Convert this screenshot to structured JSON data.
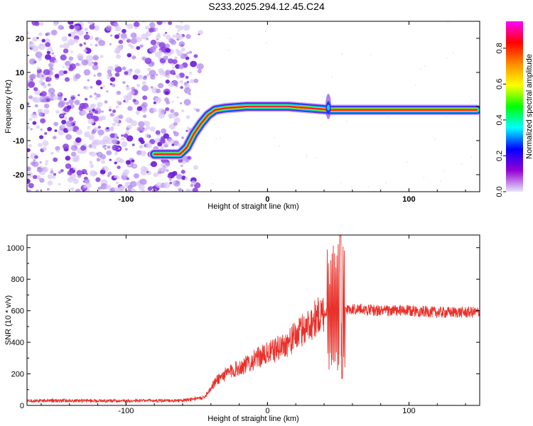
{
  "title": "S233.2025.294.12.45.C24",
  "chart_data": [
    {
      "type": "heatmap",
      "name": "spectrogram",
      "xlabel": "Height of straight line (km)",
      "ylabel": "Frequency (Hz)",
      "xlim": [
        -170,
        150
      ],
      "ylim": [
        -25,
        25
      ],
      "xticks": [
        -100,
        0,
        100
      ],
      "xtick_labels": [
        "-100",
        "0",
        "100"
      ],
      "yticks": [
        20,
        10,
        0,
        -10,
        -20
      ],
      "ytick_labels": [
        "20",
        "10",
        "0",
        "-10",
        "-20"
      ],
      "colorbar": {
        "label": "Normalized spectral amplitude",
        "range": [
          0.0,
          0.95
        ],
        "ticks": [
          0.0,
          0.2,
          0.4,
          0.6,
          0.8
        ],
        "tick_labels": [
          "0.0",
          "0.2",
          "0.4",
          "0.6",
          "0.8"
        ],
        "colors": [
          "#e6e6fa",
          "#9400d3",
          "#0000ff",
          "#00ffff",
          "#00ff00",
          "#ffff00",
          "#ff8c00",
          "#ff0000",
          "#ff00ff"
        ]
      },
      "ridge": {
        "x": [
          -80,
          -62,
          -57,
          -52,
          -47,
          -42,
          -37,
          -30,
          -15,
          0,
          15,
          30,
          45,
          60,
          80,
          100,
          120,
          148
        ],
        "y": [
          -14,
          -14,
          -12,
          -8,
          -5,
          -2.5,
          -1,
          -0.5,
          0,
          0,
          0,
          -0.5,
          -1,
          -1,
          -1,
          -1,
          -1,
          -1
        ]
      },
      "noise_region_x": [
        -170,
        -55
      ]
    },
    {
      "type": "line",
      "name": "snr",
      "xlabel": "Height of straight line (km)",
      "ylabel": "SNR (10 * v/v)",
      "xlim": [
        -170,
        150
      ],
      "ylim": [
        0,
        1080
      ],
      "xticks": [
        -100,
        0,
        100
      ],
      "xtick_labels": [
        "-100",
        "0",
        "100"
      ],
      "yticks": [
        0,
        200,
        400,
        600,
        800,
        1000
      ],
      "ytick_labels": [
        "0",
        "200",
        "400",
        "600",
        "800",
        "1000"
      ],
      "color": "#e8312a",
      "envelope": {
        "x": [
          -170,
          -60,
          -45,
          -35,
          -25,
          -15,
          -5,
          5,
          15,
          25,
          35,
          45,
          50,
          55,
          65,
          80,
          100,
          120,
          150
        ],
        "y": [
          30,
          30,
          50,
          170,
          220,
          260,
          310,
          350,
          400,
          480,
          560,
          610,
          620,
          610,
          610,
          600,
          600,
          590,
          590
        ]
      },
      "spike_region_x": [
        42,
        55
      ]
    }
  ]
}
